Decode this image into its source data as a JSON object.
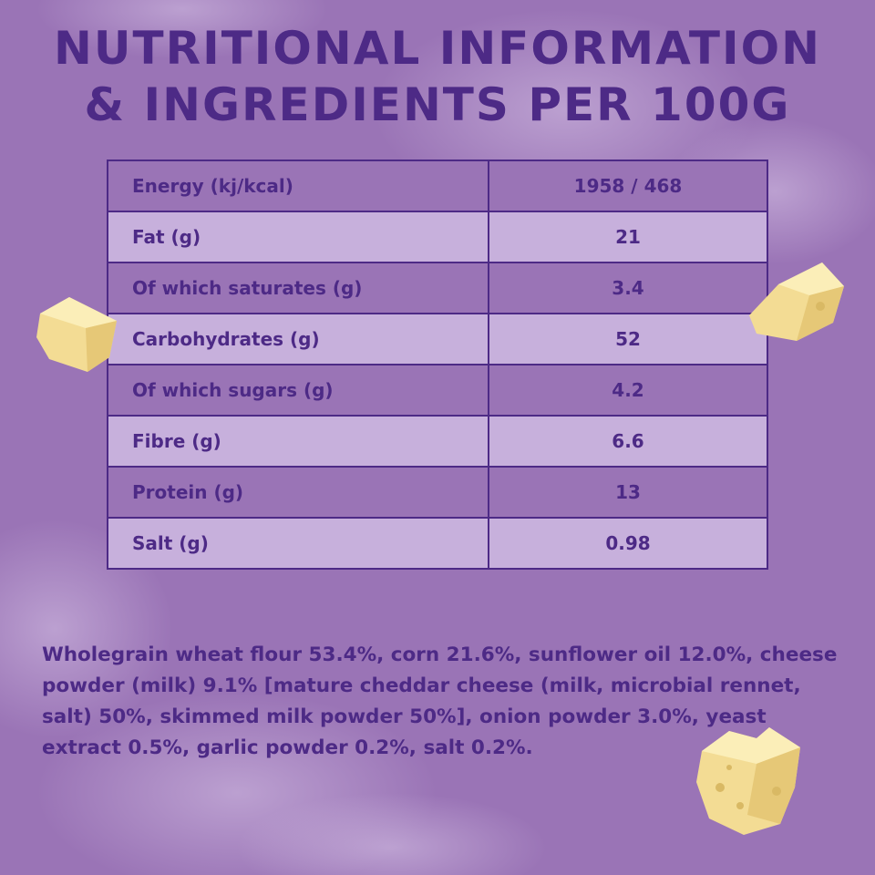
{
  "title": {
    "line1": "NUTRITIONAL INFORMATION",
    "line2": "& INGREDIENTS PER 100G"
  },
  "nutrition": [
    {
      "nutrient": "Energy (kj/kcal)",
      "value": "1958 / 468"
    },
    {
      "nutrient": "Fat (g)",
      "value": "21"
    },
    {
      "nutrient": "Of which saturates (g)",
      "value": "3.4"
    },
    {
      "nutrient": "Carbohydrates (g)",
      "value": "52"
    },
    {
      "nutrient": "Of which sugars (g)",
      "value": "4.2"
    },
    {
      "nutrient": "Fibre (g)",
      "value": "6.6"
    },
    {
      "nutrient": "Protein (g)",
      "value": "13"
    },
    {
      "nutrient": "Salt (g)",
      "value": "0.98"
    }
  ],
  "ingredients": "Wholegrain wheat flour 53.4%, corn 21.6%, sunflower oil 12.0%, cheese powder (milk) 9.1% [mature cheddar cheese (milk, microbial rennet, salt) 50%, skimmed milk powder 50%], onion powder 3.0%, yeast extract 0.5%, garlic powder 0.2%, salt 0.2%.",
  "colors": {
    "background": "#9a74b6",
    "row_light": "#c7b0dc",
    "text": "#4d2a86",
    "cheese": "#f3dc94"
  }
}
